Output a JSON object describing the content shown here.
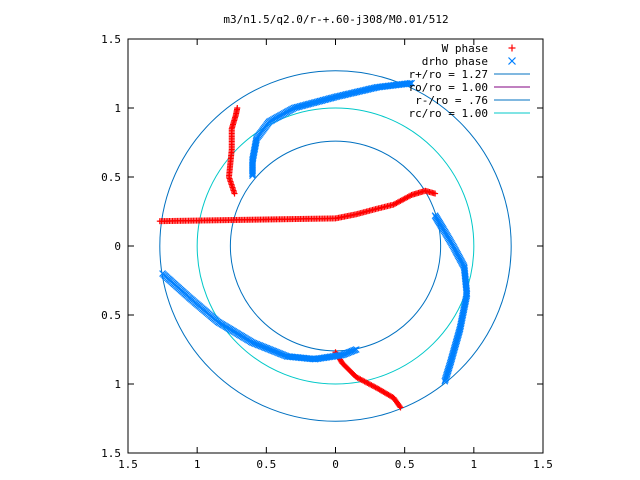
{
  "chart_data": {
    "type": "scatter",
    "title": "m3/n1.5/q2.0/r-+.60-j308/M0.01/512",
    "xlim": [
      -1.5,
      1.5
    ],
    "ylim": [
      -1.5,
      1.5
    ],
    "x_ticks": [
      -1.5,
      -1,
      -0.5,
      0,
      0.5,
      1,
      1.5
    ],
    "y_ticks": [
      -1.5,
      -1,
      -0.5,
      0,
      0.5,
      1,
      1.5
    ],
    "x_tick_labels": [
      "1.5",
      "1",
      "0.5",
      "0",
      "0.5",
      "1",
      "1.5"
    ],
    "y_tick_labels": [
      "1.5",
      "1",
      "0.5",
      "0",
      "0.5",
      "1",
      "1.5"
    ],
    "grid": false,
    "legend_position": "top-right",
    "legend": [
      {
        "label": "W phase",
        "kind": "point",
        "marker": "+",
        "color": "#ff0000"
      },
      {
        "label": "drho phase",
        "kind": "point",
        "marker": "x",
        "color": "#0080ff"
      },
      {
        "label": "r+/ro = 1.27",
        "kind": "line",
        "color": "#0070c0"
      },
      {
        "label": "ro/ro = 1.00",
        "kind": "line",
        "color": "#800080"
      },
      {
        "label": "r-/ro = .76",
        "kind": "line",
        "color": "#0070c0"
      },
      {
        "label": "rc/ro = 1.00",
        "kind": "line",
        "color": "#00c8c8"
      }
    ],
    "circles": [
      {
        "r": 1.27,
        "color": "#0070c0"
      },
      {
        "r": 1.0,
        "color": "#00c8c8"
      },
      {
        "r": 0.76,
        "color": "#0070c0"
      }
    ],
    "series": [
      {
        "name": "W phase",
        "marker": "+",
        "color": "#ff0000",
        "curves": [
          [
            [
              0.72,
              0.38
            ],
            [
              0.65,
              0.4
            ],
            [
              0.55,
              0.37
            ],
            [
              0.42,
              0.3
            ],
            [
              0.3,
              0.27
            ],
            [
              0.15,
              0.23
            ],
            [
              0.0,
              0.2
            ],
            [
              -1.27,
              0.18
            ]
          ],
          [
            [
              -0.73,
              0.38
            ],
            [
              -0.77,
              0.5
            ],
            [
              -0.75,
              0.7
            ],
            [
              -0.75,
              0.85
            ],
            [
              -0.72,
              0.95
            ],
            [
              -0.71,
              1.0
            ]
          ],
          [
            [
              -0.0,
              -0.77
            ],
            [
              0.05,
              -0.85
            ],
            [
              0.15,
              -0.95
            ],
            [
              0.3,
              -1.03
            ],
            [
              0.42,
              -1.1
            ],
            [
              0.47,
              -1.17
            ]
          ]
        ]
      },
      {
        "name": "drho phase",
        "marker": "x",
        "color": "#0080ff",
        "curves": [
          [
            [
              -0.6,
              0.51
            ],
            [
              -0.6,
              0.62
            ],
            [
              -0.57,
              0.78
            ],
            [
              -0.48,
              0.9
            ],
            [
              -0.3,
              1.0
            ],
            [
              0.0,
              1.08
            ],
            [
              0.3,
              1.15
            ],
            [
              0.55,
              1.18
            ]
          ],
          [
            [
              0.72,
              0.22
            ],
            [
              0.78,
              0.12
            ],
            [
              0.85,
              0.0
            ],
            [
              0.93,
              -0.15
            ],
            [
              0.95,
              -0.35
            ],
            [
              0.9,
              -0.6
            ],
            [
              0.83,
              -0.85
            ],
            [
              0.79,
              -0.98
            ]
          ],
          [
            [
              0.15,
              -0.75
            ],
            [
              0.05,
              -0.79
            ],
            [
              -0.15,
              -0.82
            ],
            [
              -0.35,
              -0.8
            ],
            [
              -0.6,
              -0.7
            ],
            [
              -0.85,
              -0.55
            ],
            [
              -1.05,
              -0.38
            ],
            [
              -1.25,
              -0.2
            ]
          ]
        ]
      }
    ]
  }
}
